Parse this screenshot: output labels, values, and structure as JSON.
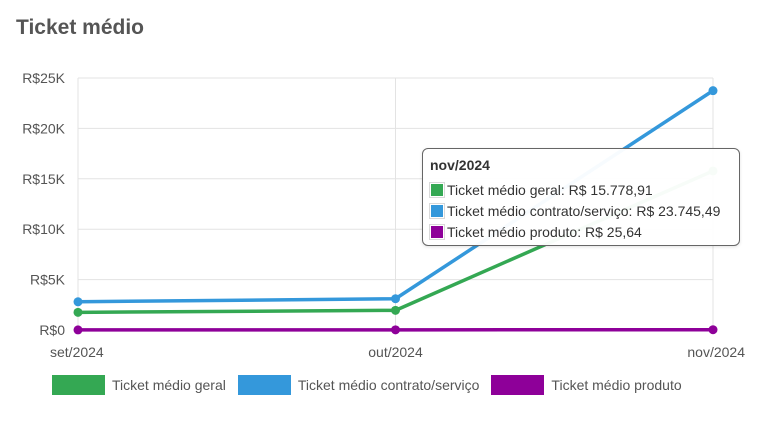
{
  "card": {
    "title": "Ticket médio"
  },
  "chart_data": {
    "type": "line",
    "title": "Ticket médio",
    "xlabel": "",
    "ylabel": "",
    "categories": [
      "set/2024",
      "out/2024",
      "nov/2024"
    ],
    "ylim": [
      0,
      25000
    ],
    "yticks": [
      "R$0",
      "R$5K",
      "R$10K",
      "R$15K",
      "R$20K",
      "R$25K"
    ],
    "ytick_values": [
      0,
      5000,
      10000,
      15000,
      20000,
      25000
    ],
    "grid": true,
    "legend_position": "bottom-left",
    "series": [
      {
        "name": "Ticket médio geral",
        "color": "#34a853",
        "values": [
          1750,
          1950,
          15778.91
        ]
      },
      {
        "name": "Ticket médio contrato/serviço",
        "color": "#3498db",
        "values": [
          2800,
          3100,
          23745.49
        ]
      },
      {
        "name": "Ticket médio produto",
        "color": "#8e0099",
        "values": [
          10,
          15,
          25.64
        ]
      }
    ]
  },
  "tooltip": {
    "title": "nov/2024",
    "items": [
      {
        "text": "Ticket médio geral: R$ 15.778,91",
        "color": "#34a853"
      },
      {
        "text": "Ticket médio contrato/serviço: R$ 23.745,49",
        "color": "#3498db"
      },
      {
        "text": "Ticket médio produto: R$ 25,64",
        "color": "#8e0099"
      }
    ]
  }
}
